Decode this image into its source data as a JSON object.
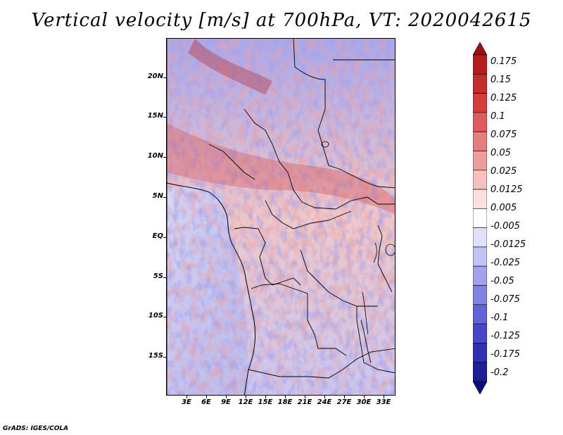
{
  "title": "Vertical velocity [m/s] at 700hPa, VT: 2020042615",
  "variable": "Vertical velocity",
  "units": "m/s",
  "level": "700hPa",
  "valid_time": "2020042615",
  "lat_labels": [
    "20N",
    "15N",
    "10N",
    "5N",
    "EQ",
    "5S",
    "10S",
    "15S"
  ],
  "lon_labels": [
    "3E",
    "6E",
    "9E",
    "12E",
    "15E",
    "18E",
    "21E",
    "24E",
    "27E",
    "30E",
    "33E"
  ],
  "colorbar": {
    "levels": [
      "0.175",
      "0.15",
      "0.125",
      "0.1",
      "0.075",
      "0.05",
      "0.025",
      "0.0125",
      "0.005",
      "-0.005",
      "-0.0125",
      "-0.025",
      "-0.05",
      "-0.075",
      "-0.1",
      "-0.125",
      "-0.175",
      "-0.2"
    ],
    "colors": [
      "#9b1111",
      "#b51c1c",
      "#c82b2b",
      "#d63c3c",
      "#df5c5c",
      "#e67c7c",
      "#ee9d9d",
      "#f5c0c0",
      "#fbe0e0",
      "#ffffff",
      "#e0e0fb",
      "#c2c2f4",
      "#a2a2ec",
      "#8282e3",
      "#6363d8",
      "#4747c9",
      "#3030b3",
      "#1d1d99",
      "#0d0d7c"
    ]
  },
  "credit": "GrADS: IGES/COLA"
}
